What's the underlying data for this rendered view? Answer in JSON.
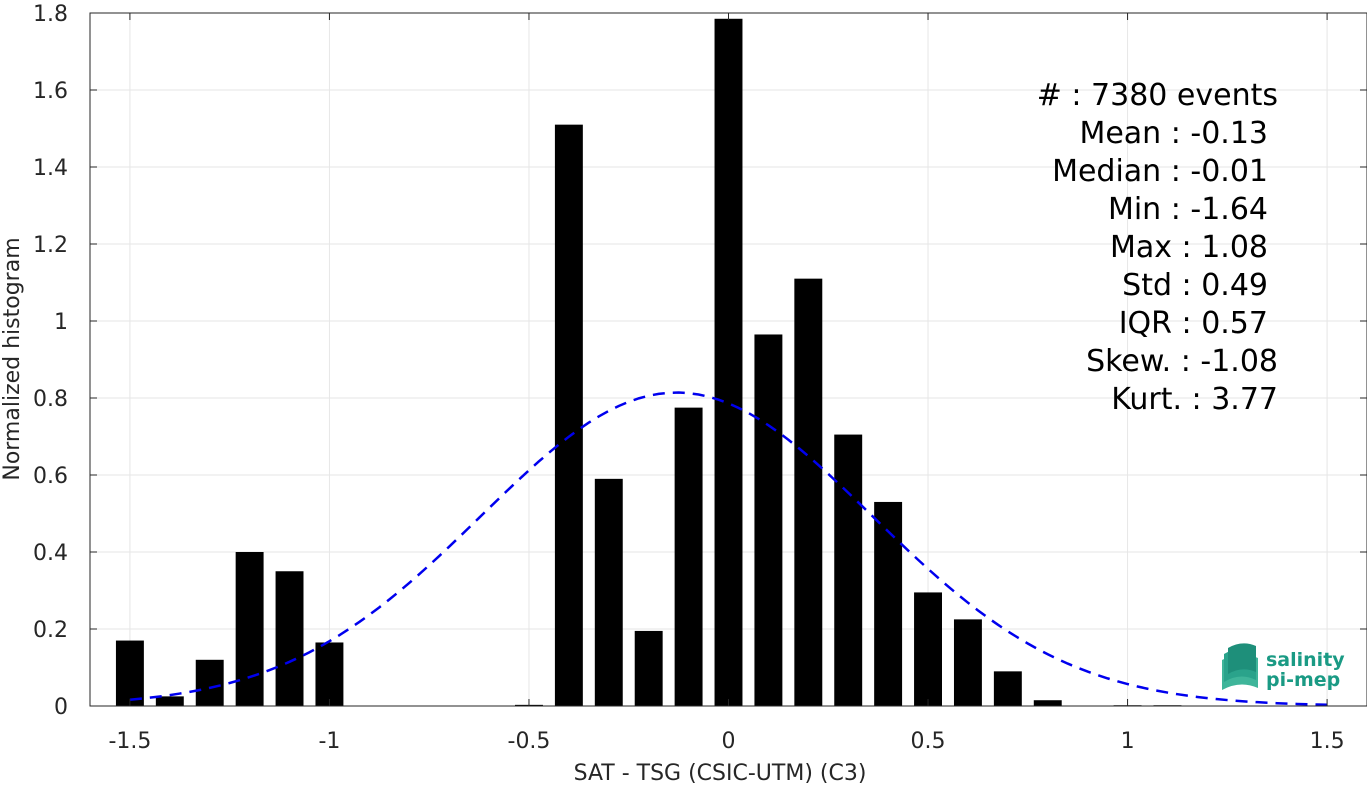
{
  "chart_data": {
    "type": "bar",
    "xlabel": "SAT - TSG (CSIC-UTM) (C3)",
    "ylabel": "Normalized histogram",
    "xlim": [
      -1.6,
      1.6
    ],
    "ylim": [
      0,
      1.8
    ],
    "grid": true,
    "x_ticks": [
      "-1.5",
      "-1",
      "-0.5",
      "0",
      "0.5",
      "1",
      "1.5"
    ],
    "y_ticks": [
      "0",
      "0.2",
      "0.4",
      "0.6",
      "0.8",
      "1",
      "1.2",
      "1.4",
      "1.6",
      "1.8"
    ],
    "bars": [
      {
        "x": -1.5,
        "value": 0.17
      },
      {
        "x": -1.4,
        "value": 0.025
      },
      {
        "x": -1.3,
        "value": 0.12
      },
      {
        "x": -1.2,
        "value": 0.4
      },
      {
        "x": -1.1,
        "value": 0.35
      },
      {
        "x": -1.0,
        "value": 0.165
      },
      {
        "x": -0.5,
        "value": 0.003
      },
      {
        "x": -0.4,
        "value": 1.51
      },
      {
        "x": -0.3,
        "value": 0.59
      },
      {
        "x": -0.2,
        "value": 0.195
      },
      {
        "x": -0.1,
        "value": 0.775
      },
      {
        "x": 0.0,
        "value": 1.785
      },
      {
        "x": 0.1,
        "value": 0.965
      },
      {
        "x": 0.2,
        "value": 1.11
      },
      {
        "x": 0.3,
        "value": 0.705
      },
      {
        "x": 0.4,
        "value": 0.53
      },
      {
        "x": 0.5,
        "value": 0.295
      },
      {
        "x": 0.6,
        "value": 0.225
      },
      {
        "x": 0.7,
        "value": 0.09
      },
      {
        "x": 0.8,
        "value": 0.015
      },
      {
        "x": 1.0,
        "value": 0.002
      },
      {
        "x": 1.1,
        "value": 0.002
      }
    ],
    "fit_curve": {
      "style": "dashed",
      "color": "#0000ee",
      "mean": -0.13,
      "std": 0.49,
      "x_range": [
        -1.5,
        1.5
      ]
    },
    "bar_color": "#000000"
  },
  "stats": [
    "#  : 7380 events",
    "Mean : -0.13",
    "Median : -0.01",
    "Min : -1.64",
    "Max : 1.08",
    "Std : 0.49",
    "IQR : 0.57",
    "Skew. : -1.08",
    "Kurt. : 3.77"
  ],
  "logo": {
    "line1": "salinity",
    "line2": "pi-mep"
  }
}
